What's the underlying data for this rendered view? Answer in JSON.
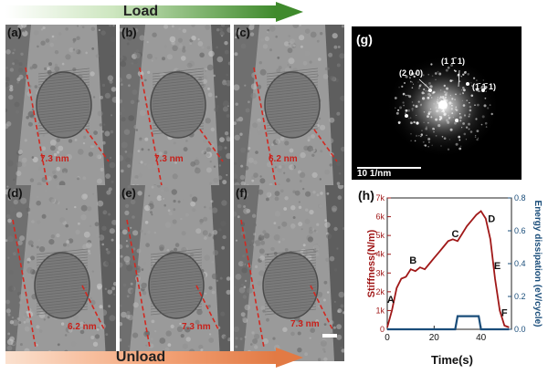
{
  "arrows": {
    "load": "Load",
    "unload": "Unload"
  },
  "panels": [
    {
      "label": "(a)",
      "measure": "7.3 nm"
    },
    {
      "label": "(b)",
      "measure": "7.3 nm"
    },
    {
      "label": "(c)",
      "measure": "6.2 nm"
    },
    {
      "label": "(d)",
      "measure": "6.2 nm"
    },
    {
      "label": "(e)",
      "measure": "7.3 nm"
    },
    {
      "label": "(f)",
      "measure": "7.3 nm"
    }
  ],
  "fft": {
    "label": "(g)",
    "scale_bar": "10 1/nm",
    "spots": [
      "(2 0 0)",
      "(1 1̄ 1)",
      "(1̄ 1̄ 1)"
    ]
  },
  "chart_label": "(h)",
  "chart_data": {
    "type": "line",
    "xlabel": "Time(s)",
    "ylabel_left": "Stiffness(N/m)",
    "ylabel_right": "Energy dissipation (eV/cycle)",
    "xlim": [
      0,
      53
    ],
    "ylim_left": [
      0,
      7000
    ],
    "ylim_right": [
      0,
      0.8
    ],
    "xticks": [
      0,
      20,
      40
    ],
    "yticks_left": [
      "0",
      "1k",
      "2k",
      "3k",
      "4k",
      "5k",
      "6k",
      "7k"
    ],
    "yticks_right": [
      "0.0",
      "0.2",
      "0.4",
      "0.6",
      "0.8"
    ],
    "series": [
      {
        "axis": "left",
        "color": "#a01818",
        "x": [
          0,
          2,
          4,
          6,
          8,
          10,
          12,
          14,
          16,
          18,
          20,
          22,
          24,
          26,
          28,
          30,
          32,
          34,
          36,
          38,
          40,
          42,
          44,
          46,
          48,
          50,
          52
        ],
        "y": [
          100,
          1000,
          2200,
          2700,
          2800,
          3200,
          3100,
          3300,
          3200,
          3500,
          3800,
          4100,
          4400,
          4700,
          4800,
          4700,
          5100,
          5500,
          5800,
          6100,
          6300,
          5900,
          4800,
          2700,
          1000,
          200,
          100
        ]
      },
      {
        "axis": "right",
        "color": "#1a4d7a",
        "x": [
          0,
          29,
          30,
          39,
          40,
          52
        ],
        "y": [
          0.0,
          0.0,
          0.08,
          0.08,
          0.0,
          0.0
        ]
      }
    ],
    "annotations": [
      {
        "text": "A",
        "x": 1.5,
        "y": 1400
      },
      {
        "text": "B",
        "x": 11,
        "y": 3500
      },
      {
        "text": "C",
        "x": 29,
        "y": 4900
      },
      {
        "text": "D",
        "x": 44.5,
        "y": 5700
      },
      {
        "text": "E",
        "x": 47,
        "y": 3200
      },
      {
        "text": "F",
        "x": 50,
        "y": 700
      }
    ]
  }
}
